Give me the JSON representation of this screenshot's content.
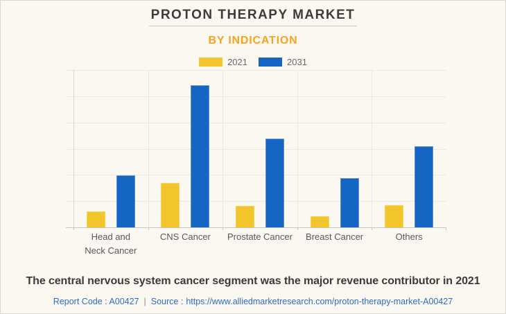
{
  "header": {
    "title": "PROTON THERAPY MARKET",
    "subtitle": "BY INDICATION"
  },
  "legend": {
    "items": [
      {
        "label": "2021",
        "color": "#f2c52d"
      },
      {
        "label": "2031",
        "color": "#1565c2"
      }
    ]
  },
  "chart_data": {
    "type": "bar",
    "title": "PROTON THERAPY MARKET",
    "subtitle": "BY INDICATION",
    "categories": [
      "Head and Neck Cancer",
      "CNS Cancer",
      "Prostate Cancer",
      "Breast Cancer",
      "Others"
    ],
    "category_lines": [
      [
        "Head and",
        "Neck Cancer"
      ],
      [
        "CNS Cancer"
      ],
      [
        "Prostate Cancer"
      ],
      [
        "Breast Cancer"
      ],
      [
        "Others"
      ]
    ],
    "series": [
      {
        "name": "2021",
        "color": "#f2c52d",
        "edge": "#f6d45c",
        "values": [
          10,
          28,
          13.5,
          7,
          14
        ]
      },
      {
        "name": "2031",
        "color": "#1565c2",
        "edge": "#5d8fd3",
        "values": [
          33,
          90.5,
          56.5,
          31.5,
          51.5
        ]
      }
    ],
    "xlabel": "",
    "ylabel": "",
    "ylim": [
      0,
      100
    ],
    "y_gridlines": 7,
    "grid": true,
    "legend_position": "top",
    "value_axis_labels_shown": false
  },
  "footer": {
    "headline": "The central nervous system cancer segment was the major revenue contributor in 2021",
    "report_code": "Report Code : A00427",
    "separator": "|",
    "source_prefix": "Source :",
    "source_url": "https://www.alliedmarketresearch.com/proton-therapy-market-A00427"
  },
  "colors": {
    "background": "#faf8f1",
    "border": "#d9d7d1",
    "title_text": "#3c3c3c",
    "subtitle_orange": "#f6a41f",
    "grid": "#eae8e1",
    "axis": "#c8c6c0",
    "category_text": "#55585e",
    "legend_text": "#66696d",
    "headline_text": "#3b3b3b",
    "link_blue": "#2e6dc5",
    "bar_2021": "#f2c52d",
    "bar_2031": "#1565c2"
  }
}
